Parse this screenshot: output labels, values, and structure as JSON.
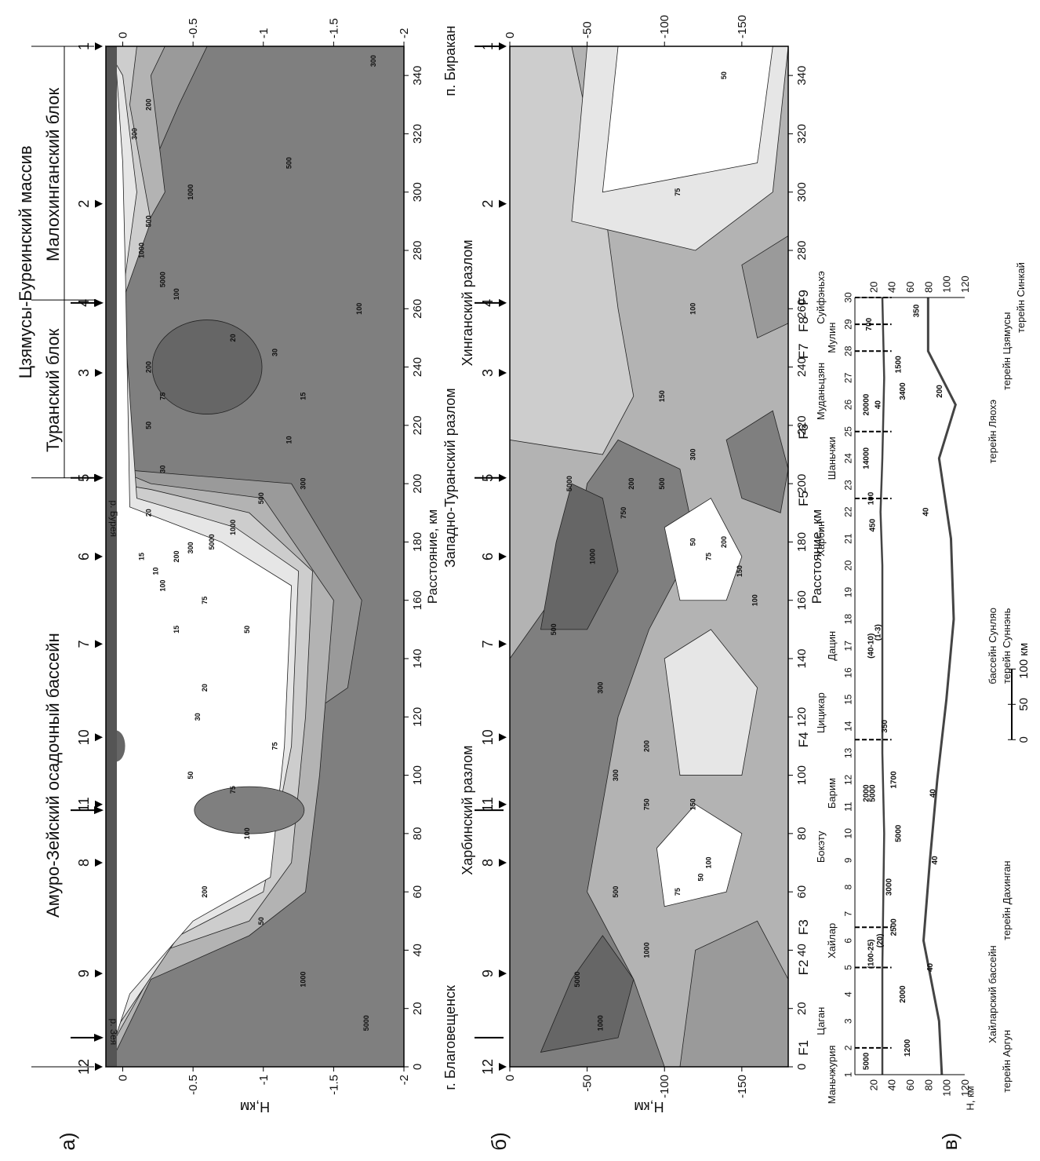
{
  "panels": {
    "a": {
      "label": "а)",
      "axis_title": "H,км",
      "depth_ticks": [
        "0",
        "-0.5",
        "-1",
        "-1.5",
        "-2"
      ],
      "distance_ticks": [
        "0",
        "20",
        "40",
        "60",
        "80",
        "100",
        "120",
        "140",
        "160",
        "180",
        "200",
        "220",
        "240",
        "260",
        "280",
        "300",
        "320",
        "340"
      ],
      "distance_title": "Расстояние, км",
      "stations": [
        "12",
        "9",
        "8",
        "11",
        "10",
        "7",
        "6",
        "5",
        "3",
        "4",
        "2",
        "1"
      ],
      "rivers": [
        "р. Зея",
        "р. Бурея"
      ],
      "regions": [
        "Амуро-Зейский осадочный бассейн",
        "Цзямусы-Буреинский массив",
        "Туранский блок",
        "Малохинганский блок"
      ],
      "contour_labels": [
        "1000",
        "5000",
        "1000",
        "500",
        "300",
        "200",
        "100",
        "75",
        "50",
        "30",
        "20",
        "15",
        "10",
        "15",
        "20",
        "30",
        "50",
        "75",
        "100",
        "200",
        "300",
        "500",
        "1000",
        "5000",
        "300",
        "200",
        "100",
        "75",
        "50",
        "30",
        "20",
        "15",
        "10",
        "5000",
        "1000",
        "500",
        "300",
        "200",
        "100",
        "75",
        "50"
      ]
    },
    "b": {
      "label": "б)",
      "axis_title": "H,км",
      "depth_ticks": [
        "0",
        "-50",
        "-100",
        "-150"
      ],
      "distance_ticks": [
        "0",
        "20",
        "40",
        "60",
        "80",
        "100",
        "120",
        "140",
        "160",
        "180",
        "200",
        "220",
        "240",
        "260",
        "280",
        "300",
        "320",
        "340"
      ],
      "distance_title": "Расстояние, км",
      "stations": [
        "12",
        "9",
        "8",
        "11",
        "10",
        "7",
        "6",
        "5",
        "3",
        "4",
        "2",
        "1"
      ],
      "places": [
        "г. Благовещенск",
        "Харбинский разлом",
        "Западно-Туранский разлом",
        "Хинганский разлом",
        "п. Биракан"
      ],
      "contour_labels": [
        "1000",
        "5000",
        "500",
        "300",
        "200",
        "150",
        "100",
        "75",
        "50",
        "750",
        "1000",
        "500",
        "300",
        "200",
        "150",
        "100",
        "75",
        "50",
        "5000",
        "1000",
        "750",
        "500",
        "300",
        "200",
        "150",
        "100",
        "75",
        "50"
      ]
    },
    "v": {
      "label": "в)",
      "depth_title": "H, км",
      "depth_ticks": [
        "20",
        "40",
        "60",
        "80",
        "100",
        "120"
      ],
      "station_numbers": [
        "1",
        "2",
        "3",
        "4",
        "5",
        "6",
        "7",
        "8",
        "9",
        "10",
        "11",
        "12",
        "13",
        "14",
        "15",
        "16",
        "17",
        "18",
        "19",
        "20",
        "21",
        "22",
        "23",
        "24",
        "25",
        "26",
        "27",
        "28",
        "29",
        "30"
      ],
      "faults": [
        "F1",
        "F2",
        "F3",
        "F4",
        "F5",
        "F6",
        "F7",
        "F8",
        "F9"
      ],
      "place_names": [
        "Маньчжурия",
        "Цаган",
        "Хайлар",
        "Бокэту",
        "Барим",
        "Цицикар",
        "Дацин",
        "Харбин",
        "Шаньчжи",
        "Муданьцзян",
        "Мулин",
        "Суйфэньхэ"
      ],
      "values": [
        "5000",
        "1200",
        "2000",
        "2500",
        "3000",
        "5000",
        "5000",
        "1700",
        "2000",
        "350",
        "(40-10)",
        "(1-3)",
        "450",
        "100",
        "14000",
        "20000",
        "3400",
        "1500",
        "200",
        "700",
        "350",
        "40",
        "40",
        "40",
        "40",
        "40",
        "(100-25)",
        "(20)"
      ],
      "terranes": [
        "терейн Аргун",
        "Хайларский бассейн",
        "терейн Дахинган",
        "бассейн Сунляо",
        "терейн Суннэнь",
        "терейн Ляохэ",
        "терейн Цзямусы",
        "терейн Синкай"
      ],
      "scale_ticks": [
        "0",
        "50",
        "100"
      ],
      "scale_unit": "км"
    }
  }
}
